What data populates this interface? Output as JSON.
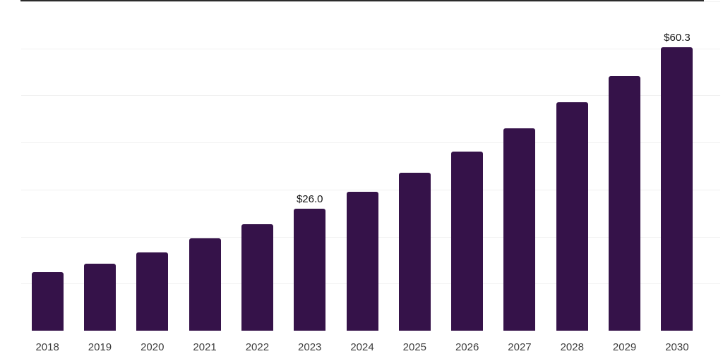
{
  "chart": {
    "colors": {
      "bar": "#351249",
      "gridline": "#f0f0f0",
      "axis_line": "#2b2b2b",
      "tick_label": "#3d3d3d",
      "data_label": "#141414",
      "background": "#ffffff"
    }
  },
  "chart_data": {
    "type": "bar",
    "title": "",
    "xlabel": "",
    "ylabel": "",
    "categories": [
      "2018",
      "2019",
      "2020",
      "2021",
      "2022",
      "2023",
      "2024",
      "2025",
      "2026",
      "2027",
      "2028",
      "2029",
      "2030"
    ],
    "values": [
      12.4,
      14.2,
      16.6,
      19.6,
      22.6,
      26.0,
      29.6,
      33.6,
      38.1,
      43.0,
      48.5,
      54.1,
      60.3
    ],
    "data_labels": {
      "2023": "$26.0",
      "2030": "$60.3"
    },
    "ylim": [
      0,
      70
    ],
    "gridline_values": [
      10,
      20,
      30,
      40,
      50,
      60,
      70
    ],
    "grid": true,
    "legend": false,
    "y_axis_labels_visible": false
  }
}
